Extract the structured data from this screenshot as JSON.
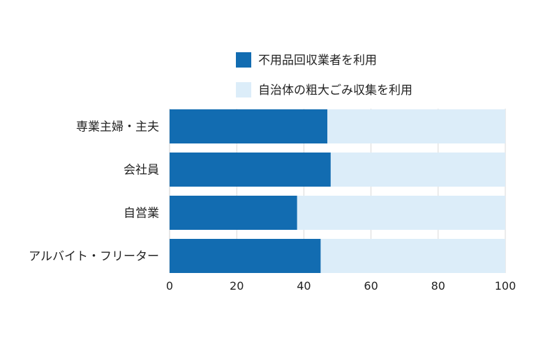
{
  "chart_data": {
    "type": "bar",
    "orientation": "horizontal",
    "stacked": true,
    "title": "",
    "xlabel": "",
    "ylabel": "",
    "categories": [
      "専業主婦・主夫",
      "会社員",
      "自営業",
      "アルバイト・フリーター"
    ],
    "series": [
      {
        "name": "不用品回収業者を利用",
        "values": [
          47,
          48,
          38,
          45
        ],
        "color": "#126cb1"
      },
      {
        "name": "自治体の粗大ごみ収集を利用",
        "values": [
          53,
          52,
          62,
          55
        ],
        "color": "#dcedf9"
      }
    ],
    "xlim": [
      0,
      100
    ],
    "xticks": [
      "0",
      "20",
      "40",
      "60",
      "80",
      "100"
    ],
    "grid": true,
    "legend": "top"
  }
}
